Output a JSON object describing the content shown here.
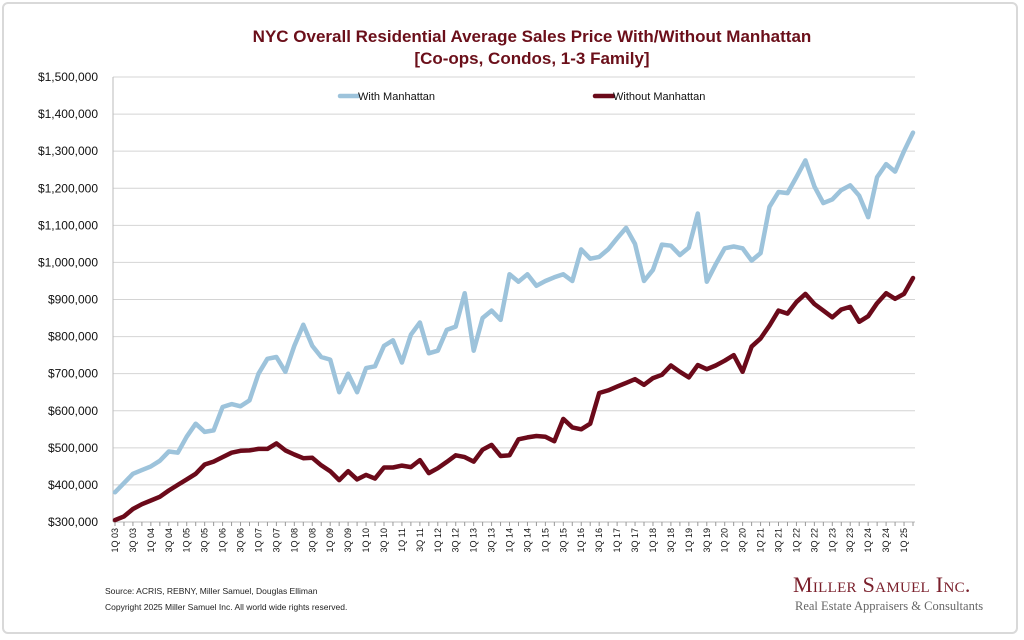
{
  "chart_data": {
    "type": "line",
    "title": "NYC Overall Residential Average Sales Price With/Without Manhattan",
    "subtitle": "[Co-ops, Condos, 1-3 Family]",
    "xlabel": "",
    "ylabel": "",
    "ylim": [
      300000,
      1500000
    ],
    "y_ticks": [
      300000,
      400000,
      500000,
      600000,
      700000,
      800000,
      900000,
      1000000,
      1100000,
      1200000,
      1300000,
      1400000,
      1500000
    ],
    "y_tick_labels": [
      "$300,000",
      "$400,000",
      "$500,000",
      "$600,000",
      "$700,000",
      "$800,000",
      "$900,000",
      "$1,000,000",
      "$1,100,000",
      "$1,200,000",
      "$1,300,000",
      "$1,400,000",
      "$1,500,000"
    ],
    "grid": true,
    "legend_position": "top",
    "x": [
      "1Q 03",
      "2Q 03",
      "3Q 03",
      "4Q 03",
      "1Q 04",
      "2Q 04",
      "3Q 04",
      "4Q 04",
      "1Q 05",
      "2Q 05",
      "3Q 05",
      "4Q 05",
      "1Q 06",
      "2Q 06",
      "3Q 06",
      "4Q 06",
      "1Q 07",
      "2Q 07",
      "3Q 07",
      "4Q 07",
      "1Q 08",
      "2Q 08",
      "3Q 08",
      "4Q 08",
      "1Q 09",
      "2Q 09",
      "3Q 09",
      "4Q 09",
      "1Q 10",
      "2Q 10",
      "3Q 10",
      "4Q 10",
      "1Q 11",
      "2Q 11",
      "3Q 11",
      "4Q 11",
      "1Q 12",
      "2Q 12",
      "3Q 12",
      "4Q 12",
      "1Q 13",
      "2Q 13",
      "3Q 13",
      "4Q 13",
      "1Q 14",
      "2Q 14",
      "3Q 14",
      "4Q 14",
      "1Q 15",
      "2Q 15",
      "3Q 15",
      "4Q 15",
      "1Q 16",
      "2Q 16",
      "3Q 16",
      "4Q 16",
      "1Q 17",
      "2Q 17",
      "3Q 17",
      "4Q 17",
      "1Q 18",
      "2Q 18",
      "3Q 18",
      "4Q 18",
      "1Q 19",
      "2Q 19",
      "3Q 19",
      "4Q 19",
      "1Q 20",
      "2Q 20",
      "3Q 20",
      "4Q 20",
      "1Q 21",
      "2Q 21",
      "3Q 21",
      "4Q 21",
      "1Q 22",
      "2Q 22",
      "3Q 22",
      "4Q 22",
      "1Q 23",
      "2Q 23",
      "3Q 23",
      "4Q 23",
      "1Q 24",
      "2Q 24",
      "3Q 24",
      "4Q 24",
      "1Q 25",
      "2Q 25"
    ],
    "series": [
      {
        "name": "With Manhattan",
        "color": "#9dc3db",
        "values": [
          380000,
          405000,
          430000,
          440000,
          450000,
          465000,
          490000,
          487000,
          530000,
          565000,
          543000,
          547000,
          610000,
          618000,
          612000,
          628000,
          700000,
          740000,
          745000,
          705000,
          775000,
          832000,
          775000,
          745000,
          738000,
          650000,
          700000,
          650000,
          715000,
          720000,
          775000,
          790000,
          730000,
          805000,
          838000,
          755000,
          762000,
          818000,
          827000,
          917000,
          762000,
          850000,
          870000,
          845000,
          968000,
          948000,
          968000,
          937000,
          950000,
          960000,
          968000,
          950000,
          1035000,
          1010000,
          1015000,
          1035000,
          1065000,
          1093000,
          1050000,
          950000,
          980000,
          1048000,
          1045000,
          1020000,
          1040000,
          1132000,
          948000,
          995000,
          1038000,
          1043000,
          1038000,
          1005000,
          1025000,
          1150000,
          1190000,
          1187000,
          1230000,
          1275000,
          1205000,
          1160000,
          1170000,
          1195000,
          1208000,
          1180000,
          1122000,
          1230000,
          1265000,
          1245000,
          1300000,
          1350000
        ]
      },
      {
        "name": "Without Manhattan",
        "color": "#6b0a1a",
        "values": [
          305000,
          315000,
          335000,
          348000,
          358000,
          368000,
          385000,
          400000,
          415000,
          430000,
          455000,
          463000,
          475000,
          487000,
          492000,
          493000,
          497000,
          497000,
          512000,
          493000,
          482000,
          472000,
          473000,
          453000,
          437000,
          413000,
          437000,
          415000,
          427000,
          417000,
          447000,
          447000,
          452000,
          448000,
          467000,
          432000,
          445000,
          462000,
          480000,
          475000,
          463000,
          495000,
          508000,
          478000,
          480000,
          523000,
          528000,
          532000,
          530000,
          518000,
          578000,
          555000,
          550000,
          565000,
          648000,
          655000,
          665000,
          675000,
          685000,
          670000,
          688000,
          697000,
          722000,
          705000,
          690000,
          723000,
          712000,
          722000,
          735000,
          750000,
          705000,
          773000,
          795000,
          830000,
          870000,
          862000,
          893000,
          915000,
          888000,
          870000,
          852000,
          873000,
          880000,
          840000,
          855000,
          890000,
          917000,
          902000,
          915000,
          958000
        ]
      }
    ]
  },
  "footer": {
    "source": "Source: ACRIS, REBNY, Miller Samuel, Douglas Elliman",
    "copyright": "Copyright 2025 Miller Samuel Inc.  All world wide rights reserved."
  },
  "logo": {
    "name": "Miller Samuel Inc.",
    "tagline": "Real Estate Appraisers & Consultants"
  }
}
